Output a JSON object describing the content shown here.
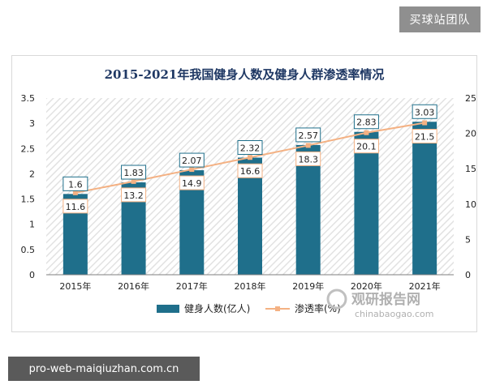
{
  "watermark_top": "买球站团队",
  "watermark_bottom": "pro-web-maiqiuzhan.com.cn",
  "brand": {
    "name_cn": "观研报告网",
    "site": "chinabaogao.com"
  },
  "chart_data": {
    "type": "bar",
    "title": "2015-2021年我国健身人数及健身人群渗透率情况",
    "categories": [
      "2015年",
      "2016年",
      "2017年",
      "2018年",
      "2019年",
      "2020年",
      "2021年"
    ],
    "series": [
      {
        "name": "健身人数(亿人)",
        "type": "bar",
        "axis": "left",
        "color": "#1f6f8b",
        "values": [
          1.6,
          1.83,
          2.07,
          2.32,
          2.57,
          2.83,
          3.03
        ]
      },
      {
        "name": "渗透率(%)",
        "type": "line",
        "axis": "right",
        "color": "#f4b183",
        "values": [
          11.6,
          13.2,
          14.9,
          16.6,
          18.3,
          20.1,
          21.5
        ]
      }
    ],
    "y_left": {
      "min": 0,
      "max": 3.5,
      "ticks": [
        "0",
        "0.5",
        "1",
        "1.5",
        "2",
        "2.5",
        "3",
        "3.5"
      ]
    },
    "y_right": {
      "min": 0,
      "max": 25,
      "ticks": [
        "0",
        "5",
        "10",
        "15",
        "20",
        "25"
      ]
    },
    "grid": false,
    "legend": "bottom"
  }
}
